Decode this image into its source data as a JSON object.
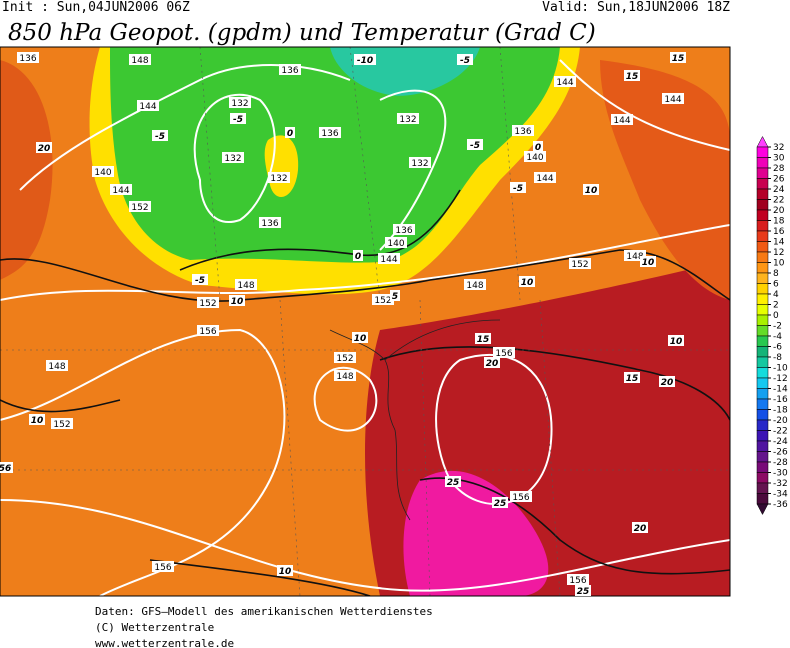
{
  "header": {
    "init": "Init : Sun,04JUN2006 06Z",
    "valid": "Valid: Sun,18JUN2006 18Z",
    "title": "850 hPa Geopot. (gpdm) und Temperatur (Grad C)"
  },
  "colorbar": {
    "ticks": [
      32,
      30,
      28,
      26,
      24,
      22,
      20,
      18,
      16,
      14,
      12,
      10,
      8,
      6,
      4,
      2,
      0,
      -2,
      -4,
      -6,
      -8,
      -10,
      -12,
      -14,
      -16,
      -18,
      -20,
      -22,
      -24,
      -26,
      -28,
      -30,
      -32,
      -34,
      -36
    ],
    "colors": [
      "#ff40ff",
      "#ff00e0",
      "#f000b8",
      "#e00090",
      "#c80050",
      "#b40028",
      "#a0001e",
      "#c00020",
      "#d81e1e",
      "#e83a1a",
      "#f05a14",
      "#f87a14",
      "#ff9614",
      "#ffb41e",
      "#ffd200",
      "#fff000",
      "#e6ff00",
      "#a8f000",
      "#64dc28",
      "#28c850",
      "#14b478",
      "#14c8a0",
      "#14dcdc",
      "#14c8f0",
      "#14a0f0",
      "#1478f0",
      "#1450e6",
      "#2828c8",
      "#3c14b4",
      "#5014a0",
      "#64148c",
      "#780a78",
      "#8c0a64",
      "#641450",
      "#4b0a3c",
      "#320a32"
    ]
  },
  "geopotential_labels": [
    "136",
    "148",
    "136",
    "144",
    "144",
    "144",
    "132",
    "136",
    "132",
    "136",
    "144",
    "132",
    "132",
    "132",
    "140",
    "144",
    "144",
    "140",
    "136",
    "136",
    "140",
    "144",
    "148",
    "152",
    "148",
    "148",
    "152",
    "152",
    "156",
    "156",
    "152",
    "148",
    "148",
    "152",
    "156",
    "156",
    "156",
    "152"
  ],
  "temperature_labels": [
    "-10",
    "-5",
    "15",
    "15",
    "-5",
    "-5",
    "0",
    "20",
    "-5",
    "0",
    "-5",
    "10",
    "0",
    "10",
    "-5",
    "10",
    "10",
    "5",
    "10",
    "15",
    "20",
    "10",
    "15",
    "20",
    "10",
    "56",
    "25",
    "25",
    "20",
    "10",
    "25"
  ],
  "footer": [
    "Daten: GFS—Modell des amerikanischen Wetterdienstes",
    "(C) Wetterzentrale",
    "www.wetterzentrale.de"
  ]
}
